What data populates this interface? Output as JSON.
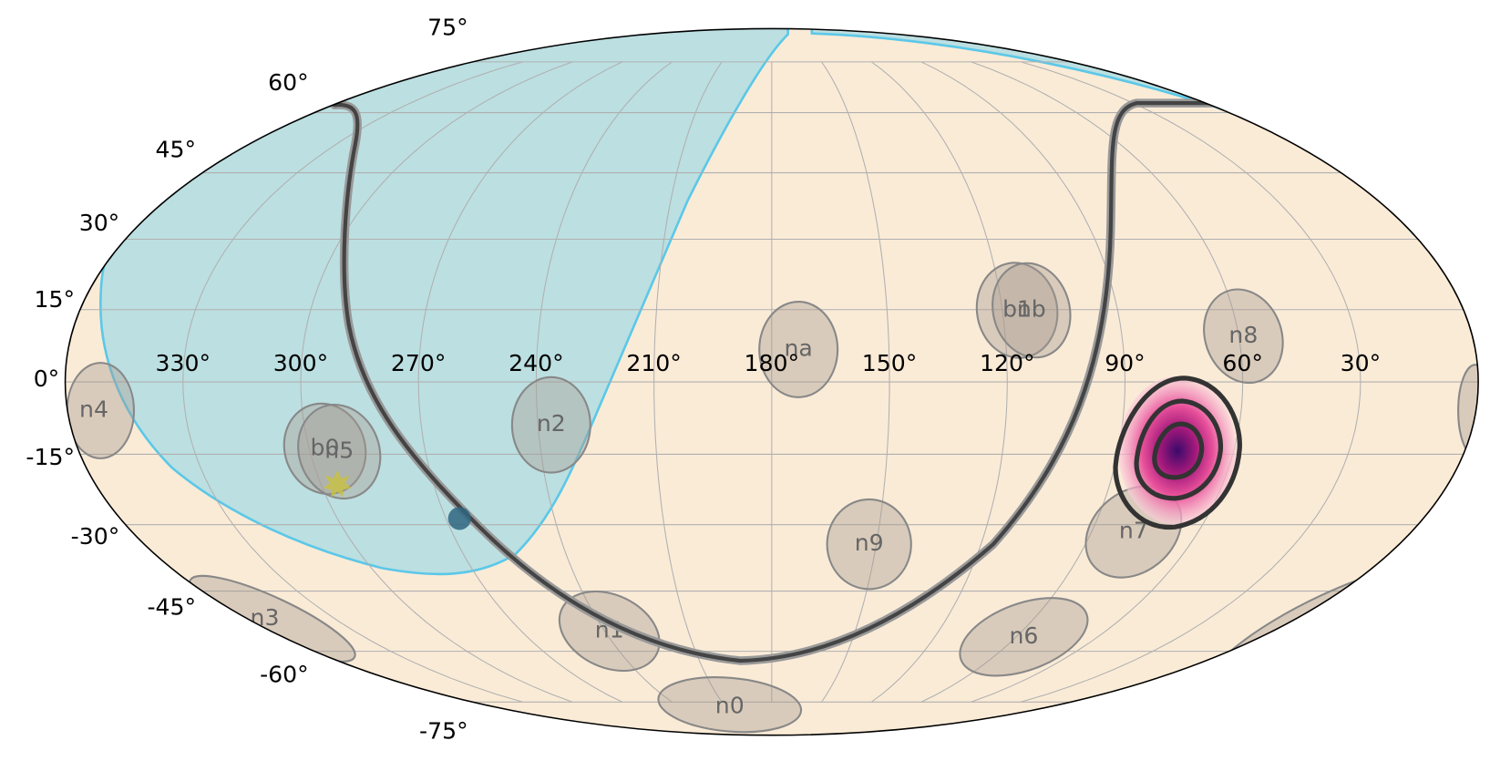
{
  "ra_ticks": [
    {
      "value": 330,
      "label": "330°"
    },
    {
      "value": 300,
      "label": "300°"
    },
    {
      "value": 270,
      "label": "270°"
    },
    {
      "value": 240,
      "label": "240°"
    },
    {
      "value": 210,
      "label": "210°"
    },
    {
      "value": 180,
      "label": "180°"
    },
    {
      "value": 150,
      "label": "150°"
    },
    {
      "value": 120,
      "label": "120°"
    },
    {
      "value": 90,
      "label": "90°"
    },
    {
      "value": 60,
      "label": "60°"
    },
    {
      "value": 30,
      "label": "30°"
    }
  ],
  "dec_ticks": [
    {
      "value": 75,
      "label": "75°"
    },
    {
      "value": 60,
      "label": "60°"
    },
    {
      "value": 45,
      "label": "45°"
    },
    {
      "value": 30,
      "label": "30°"
    },
    {
      "value": 15,
      "label": "15°"
    },
    {
      "value": 0,
      "label": "0°"
    },
    {
      "value": -15,
      "label": "-15°"
    },
    {
      "value": -30,
      "label": "-30°"
    },
    {
      "value": -45,
      "label": "-45°"
    },
    {
      "value": -60,
      "label": "-60°"
    },
    {
      "value": -75,
      "label": "-75°"
    }
  ],
  "detectors": [
    "n4",
    "b0",
    "n5",
    "n2",
    "na",
    "b1",
    "nb",
    "n8",
    "n9",
    "n7",
    "n6",
    "n1",
    "n0",
    "n3"
  ]
}
